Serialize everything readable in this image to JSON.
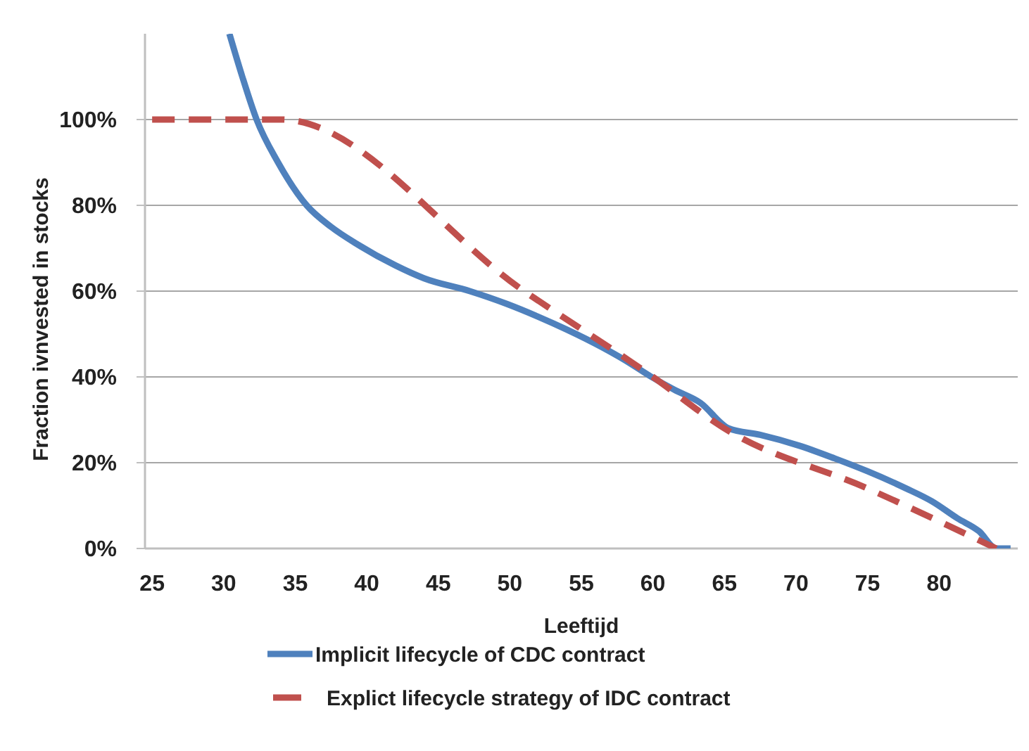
{
  "chart_data": {
    "type": "line",
    "xlabel": "Leeftijd",
    "ylabel": "Fraction ivnvested in stocks",
    "xlim": [
      24.5,
      85.5
    ],
    "ylim": [
      0,
      120
    ],
    "xticks": [
      25,
      30,
      35,
      40,
      45,
      50,
      55,
      60,
      65,
      70,
      75,
      80
    ],
    "yticks": [
      {
        "value": 0,
        "label": "0%"
      },
      {
        "value": 20,
        "label": "20%"
      },
      {
        "value": 40,
        "label": "40%"
      },
      {
        "value": 60,
        "label": "60%"
      },
      {
        "value": 80,
        "label": "80%"
      },
      {
        "value": 100,
        "label": "100%"
      }
    ],
    "grid": "y",
    "legend": "bottom",
    "marker": "none",
    "series": [
      {
        "name": "Implicit lifecycle of CDC contract",
        "color": "#4f81bd",
        "line_style": "solid",
        "x": [
          30.4,
          31.3,
          32.3,
          33.8,
          35.8,
          37.5,
          39.3,
          42,
          44,
          47.2,
          49.8,
          52,
          54,
          56.4,
          58,
          59.9,
          61.5,
          63.3,
          65.3,
          67.5,
          70.2,
          72.7,
          75,
          77.7,
          79.5,
          81.3,
          82.8,
          84,
          85
        ],
        "values": [
          120,
          110,
          100,
          90,
          80,
          75,
          71,
          66,
          63,
          60,
          57,
          54,
          51,
          47,
          44,
          40,
          37,
          34,
          28,
          26.5,
          24,
          21,
          18,
          14,
          11,
          7,
          4,
          0,
          0
        ]
      },
      {
        "name": "Explict lifecycle strategy of IDC contract",
        "color": "#c0504d",
        "line_style": "dashed",
        "x": [
          25,
          34,
          51,
          60,
          65,
          75,
          84
        ],
        "values": [
          100,
          100,
          60,
          40,
          28,
          14,
          0
        ]
      }
    ]
  }
}
